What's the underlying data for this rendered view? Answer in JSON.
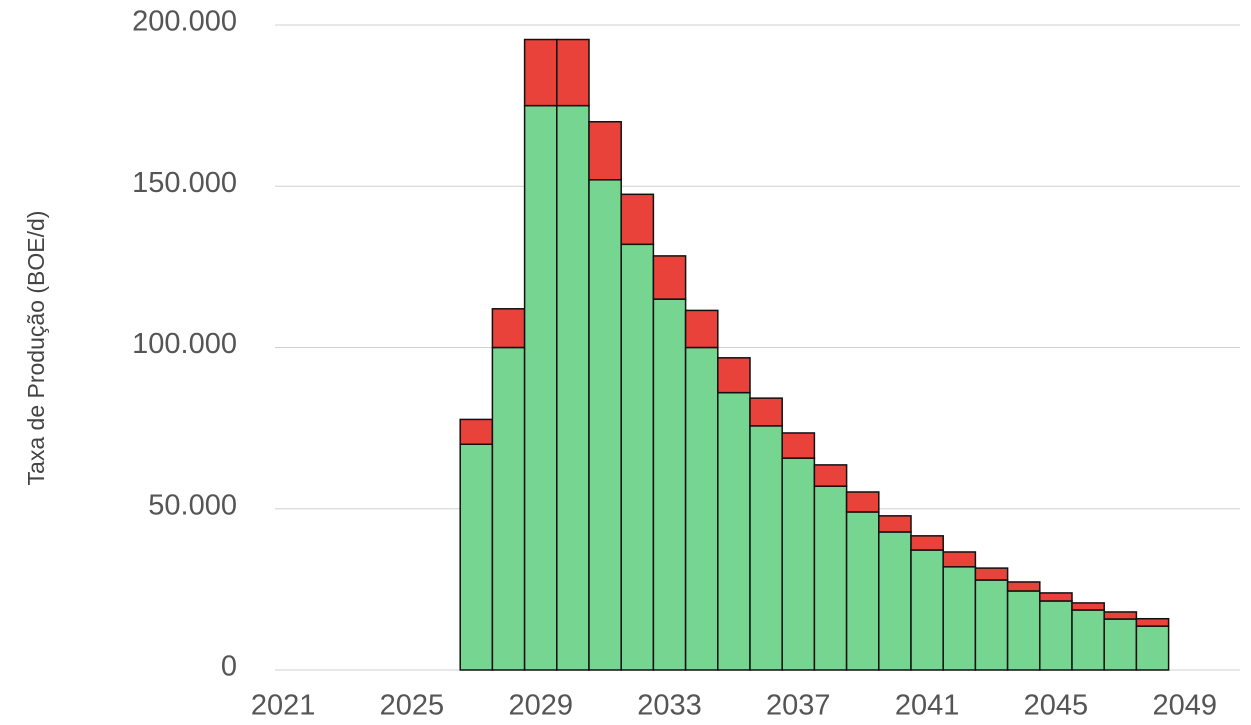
{
  "chart_data": {
    "type": "stacked-bar",
    "y_label": "Taxa de Produção (BOE/d)",
    "x": [
      2027,
      2028,
      2029,
      2030,
      2031,
      2032,
      2033,
      2034,
      2035,
      2036,
      2037,
      2038,
      2039,
      2040,
      2041,
      2042,
      2043,
      2044,
      2045,
      2046,
      2047,
      2048
    ],
    "series": [
      {
        "color": "#77d592",
        "values": [
          70000,
          100000,
          175000,
          175000,
          152000,
          132000,
          115000,
          100000,
          86000,
          75700,
          65700,
          57000,
          49000,
          42800,
          37200,
          32000,
          27900,
          24500,
          21400,
          18600,
          15800,
          13600
        ]
      },
      {
        "color": "#e8423a",
        "values": [
          7700,
          12000,
          20500,
          20500,
          18000,
          15500,
          13400,
          11500,
          10800,
          8600,
          7800,
          6600,
          6200,
          5000,
          4400,
          4600,
          3700,
          2800,
          2500,
          2200,
          2200,
          2300
        ]
      }
    ],
    "xlim": [
      2020.5,
      2050.5
    ],
    "xticks": [
      2021,
      2025,
      2029,
      2033,
      2037,
      2041,
      2045,
      2049
    ],
    "ylim": [
      0,
      200000
    ],
    "yticks": [
      0,
      {
        "value": 50000,
        "label": "50.000"
      },
      {
        "value": 100000,
        "label": "100.000"
      },
      {
        "value": 150000,
        "label": "150.000"
      },
      {
        "value": 200000,
        "label": "200.000"
      }
    ],
    "grid": true
  }
}
